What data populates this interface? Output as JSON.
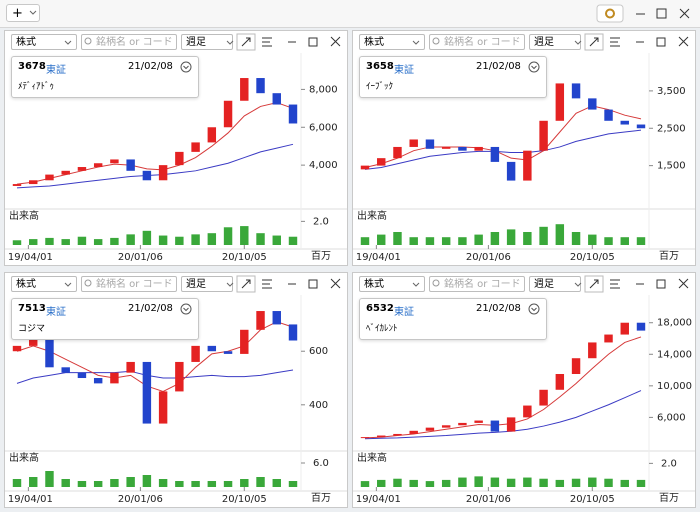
{
  "toolbar": {
    "add_button": "+"
  },
  "panels": [
    {
      "market_select": "株式",
      "search_placeholder": "銘柄名 or コード",
      "period_select": "週足",
      "code": "3678",
      "exchange": "東証",
      "date": "21/02/08",
      "name": "ﾒﾃﾞｨｱﾄﾞｩ",
      "volume_label": "出来高",
      "volume_unit": "百万",
      "xlim": [
        0,
        17
      ],
      "xticks": [
        {
          "value": 0.7,
          "label": "19/04/01"
        },
        {
          "value": 7.6,
          "label": "20/01/06"
        },
        {
          "value": 14,
          "label": "20/10/05"
        }
      ],
      "ylim": [
        2000,
        9500
      ],
      "yticks": [
        {
          "value": 4000,
          "label": "4,000"
        },
        {
          "value": 6000,
          "label": "6,000"
        },
        {
          "value": 8000,
          "label": "8,000"
        }
      ],
      "vol_ylim": [
        0,
        2.2
      ],
      "vol_yticks": [
        {
          "value": 2,
          "label": "2.0"
        }
      ],
      "open": [
        2900,
        3000,
        3200,
        3500,
        3700,
        3900,
        4100,
        4300,
        3700,
        3200,
        4000,
        4700,
        5200,
        6000,
        7400,
        8600,
        7800,
        7200
      ],
      "close": [
        3000,
        3200,
        3500,
        3700,
        3900,
        4100,
        4300,
        3700,
        3200,
        4000,
        4700,
        5200,
        6000,
        7400,
        8600,
        7800,
        7200,
        6200
      ],
      "ma_short": [
        3000,
        3100,
        3300,
        3500,
        3700,
        3900,
        4050,
        4000,
        3800,
        3750,
        4000,
        4400,
        5000,
        5700,
        6600,
        7100,
        7300,
        7000
      ],
      "ma_long": [
        2800,
        2850,
        2900,
        3000,
        3100,
        3200,
        3300,
        3400,
        3450,
        3500,
        3600,
        3700,
        3900,
        4100,
        4400,
        4700,
        4900,
        5100
      ],
      "volume": [
        0.4,
        0.5,
        0.6,
        0.5,
        0.7,
        0.5,
        0.6,
        0.9,
        1.2,
        0.8,
        0.7,
        0.9,
        1.0,
        1.5,
        1.6,
        1.0,
        0.8,
        0.7
      ]
    },
    {
      "market_select": "株式",
      "search_placeholder": "銘柄名 or コード",
      "period_select": "週足",
      "code": "3658",
      "exchange": "東証",
      "date": "21/02/08",
      "name": "ｲｰﾌﾞｯｸ",
      "volume_label": "出来高",
      "volume_unit": "百万",
      "xlim": [
        0,
        17
      ],
      "xticks": [
        {
          "value": 0.7,
          "label": "19/04/01"
        },
        {
          "value": 7.6,
          "label": "20/01/06"
        },
        {
          "value": 14,
          "label": "20/10/05"
        }
      ],
      "ylim": [
        500,
        4300
      ],
      "yticks": [
        {
          "value": 1500,
          "label": "1,500"
        },
        {
          "value": 2500,
          "label": "2,500"
        },
        {
          "value": 3500,
          "label": "3,500"
        }
      ],
      "vol_ylim": [
        0,
        1
      ],
      "open": [
        1400,
        1500,
        1700,
        2000,
        2200,
        1950,
        2000,
        1900,
        2000,
        1600,
        1100,
        1900,
        2700,
        3700,
        3300,
        3000,
        2700,
        2600
      ],
      "close": [
        1500,
        1700,
        2000,
        2200,
        1950,
        2000,
        1900,
        2000,
        1600,
        1100,
        1900,
        2700,
        3700,
        3300,
        3000,
        2700,
        2600,
        2500
      ],
      "ma_short": [
        1450,
        1550,
        1700,
        1900,
        2000,
        2000,
        2000,
        1980,
        1900,
        1700,
        1650,
        1900,
        2400,
        2900,
        3100,
        3000,
        2850,
        2750
      ],
      "ma_long": [
        1400,
        1450,
        1550,
        1650,
        1750,
        1800,
        1850,
        1880,
        1880,
        1850,
        1850,
        1900,
        2000,
        2150,
        2250,
        2350,
        2400,
        2450
      ],
      "volume": [
        0.3,
        0.4,
        0.5,
        0.3,
        0.3,
        0.3,
        0.3,
        0.4,
        0.5,
        0.6,
        0.5,
        0.7,
        0.8,
        0.5,
        0.4,
        0.3,
        0.3,
        0.3
      ]
    },
    {
      "market_select": "株式",
      "search_placeholder": "銘柄名 or コード",
      "period_select": "週足",
      "code": "7513",
      "exchange": "東証",
      "date": "21/02/08",
      "name": "コジマ",
      "volume_label": "出来高",
      "volume_unit": "百万",
      "xlim": [
        0,
        17
      ],
      "xticks": [
        {
          "value": 0.7,
          "label": "19/04/01"
        },
        {
          "value": 7.6,
          "label": "20/01/06"
        },
        {
          "value": 14,
          "label": "20/10/05"
        }
      ],
      "ylim": [
        250,
        780
      ],
      "yticks": [
        400,
        600
      ],
      "vol_ylim": [
        0,
        6.5
      ],
      "vol_yticks": [
        {
          "value": 6,
          "label": "6.0"
        }
      ],
      "open": [
        600,
        620,
        680,
        540,
        520,
        500,
        480,
        520,
        560,
        330,
        450,
        560,
        620,
        600,
        590,
        680,
        750,
        700
      ],
      "close": [
        620,
        680,
        540,
        520,
        500,
        480,
        520,
        560,
        330,
        450,
        560,
        620,
        600,
        590,
        680,
        750,
        700,
        640
      ],
      "ma_short": [
        600,
        620,
        600,
        570,
        540,
        510,
        500,
        510,
        470,
        450,
        480,
        540,
        590,
        600,
        620,
        680,
        710,
        690
      ],
      "ma_long": [
        480,
        500,
        510,
        520,
        520,
        520,
        520,
        525,
        510,
        500,
        500,
        505,
        510,
        505,
        505,
        510,
        520,
        530
      ],
      "volume": [
        2.0,
        2.5,
        4.0,
        2.0,
        1.5,
        1.5,
        2.0,
        2.5,
        3.0,
        2.0,
        1.5,
        1.5,
        1.5,
        1.5,
        2.0,
        2.5,
        2.0,
        1.5
      ]
    },
    {
      "market_select": "株式",
      "search_placeholder": "銘柄名 or コード",
      "period_select": "週足",
      "code": "6532",
      "exchange": "東証",
      "date": "21/02/08",
      "name": "ﾍﾞｲｶﾚﾝﾄ",
      "volume_label": "出来高",
      "volume_unit": "百万",
      "xlim": [
        0,
        17
      ],
      "xticks": [
        {
          "value": 0.7,
          "label": "19/04/01"
        },
        {
          "value": 7.6,
          "label": "20/01/06"
        },
        {
          "value": 14,
          "label": "20/10/05"
        }
      ],
      "ylim": [
        2500,
        20500
      ],
      "yticks": [
        {
          "value": 6000,
          "label": "6,000"
        },
        {
          "value": 10000,
          "label": "10,000"
        },
        {
          "value": 14000,
          "label": "14,000"
        },
        {
          "value": 18000,
          "label": "18,000"
        }
      ],
      "vol_ylim": [
        0,
        2.2
      ],
      "vol_yticks": [
        {
          "value": 2,
          "label": "2.0"
        }
      ],
      "open": [
        3400,
        3500,
        3700,
        3900,
        4300,
        4700,
        5000,
        5300,
        5600,
        4200,
        6000,
        7500,
        9500,
        11500,
        13500,
        15500,
        16500,
        18000
      ],
      "close": [
        3500,
        3700,
        3900,
        4300,
        4700,
        5000,
        5300,
        5600,
        4200,
        6000,
        7500,
        9500,
        11500,
        13500,
        15500,
        16500,
        18000,
        17000
      ],
      "ma_short": [
        3400,
        3500,
        3700,
        3900,
        4200,
        4500,
        4800,
        5100,
        5000,
        5200,
        5800,
        7000,
        8600,
        10300,
        12200,
        14000,
        15500,
        16200
      ],
      "ma_long": [
        3300,
        3350,
        3400,
        3500,
        3600,
        3700,
        3850,
        4000,
        4100,
        4250,
        4500,
        4900,
        5400,
        6000,
        6800,
        7600,
        8500,
        9400
      ],
      "volume": [
        0.5,
        0.6,
        0.7,
        0.6,
        0.5,
        0.6,
        0.8,
        0.9,
        0.8,
        0.7,
        0.8,
        0.7,
        0.6,
        0.7,
        0.8,
        0.7,
        0.6,
        0.6
      ]
    }
  ]
}
